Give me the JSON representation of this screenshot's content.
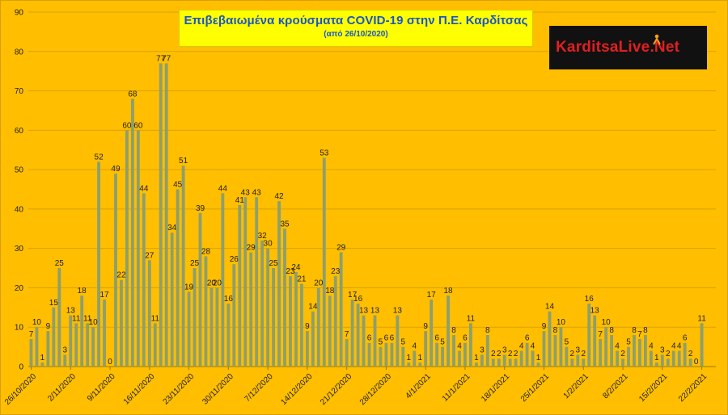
{
  "header": {
    "title": "Επιβεβαιωμένα κρούσματα COVID-19 στην Π.Ε. Καρδίτσας",
    "subtitle": "(από 26/10/2020)"
  },
  "logo": {
    "text": "KarditsaLive.Net"
  },
  "colors": {
    "background": "#ffbe00",
    "bar": "#8c9f6e",
    "title_box": "#ffff00",
    "title_text": "#1a56c8"
  },
  "chart_data": {
    "type": "bar",
    "title": "Επιβεβαιωμένα κρούσματα COVID-19 στην Π.Ε. Καρδίτσας",
    "subtitle": "(από 26/10/2020)",
    "xlabel": "",
    "ylabel": "",
    "ylim": [
      0,
      90
    ],
    "y_ticks": [
      0,
      10,
      20,
      30,
      40,
      50,
      60,
      70,
      80,
      90
    ],
    "grid": true,
    "legend": "none",
    "x_tick_labels": [
      "26/10/2020",
      "2/11/2020",
      "9/11/2020",
      "16/11/2020",
      "23/11/2020",
      "30/11/2020",
      "7/12/2020",
      "14/12/2020",
      "21/12/2020",
      "28/12/2020",
      "4/1/2021",
      "11/1/2021",
      "18/1/2021",
      "25/1/2021",
      "1/2/2021",
      "8/2/2021",
      "15/2/2021",
      "22/2/2021"
    ],
    "start_date": "26/10/2020",
    "values": [
      7,
      10,
      1,
      9,
      15,
      25,
      3,
      13,
      11,
      18,
      11,
      10,
      52,
      17,
      0,
      49,
      22,
      60,
      68,
      60,
      44,
      27,
      11,
      77,
      77,
      34,
      45,
      51,
      19,
      25,
      39,
      28,
      20,
      20,
      44,
      16,
      26,
      41,
      43,
      29,
      43,
      32,
      30,
      25,
      42,
      35,
      23,
      24,
      21,
      9,
      14,
      20,
      53,
      18,
      23,
      29,
      7,
      17,
      16,
      13,
      6,
      13,
      5,
      6,
      6,
      13,
      5,
      1,
      4,
      1,
      9,
      17,
      6,
      5,
      18,
      8,
      4,
      6,
      11,
      1,
      3,
      8,
      2,
      2,
      3,
      2,
      2,
      4,
      6,
      4,
      1,
      9,
      14,
      8,
      10,
      5,
      2,
      3,
      2,
      16,
      13,
      7,
      10,
      8,
      4,
      2,
      5,
      8,
      7,
      8,
      4,
      1,
      3,
      2,
      4,
      4,
      6,
      2,
      0,
      11
    ]
  }
}
